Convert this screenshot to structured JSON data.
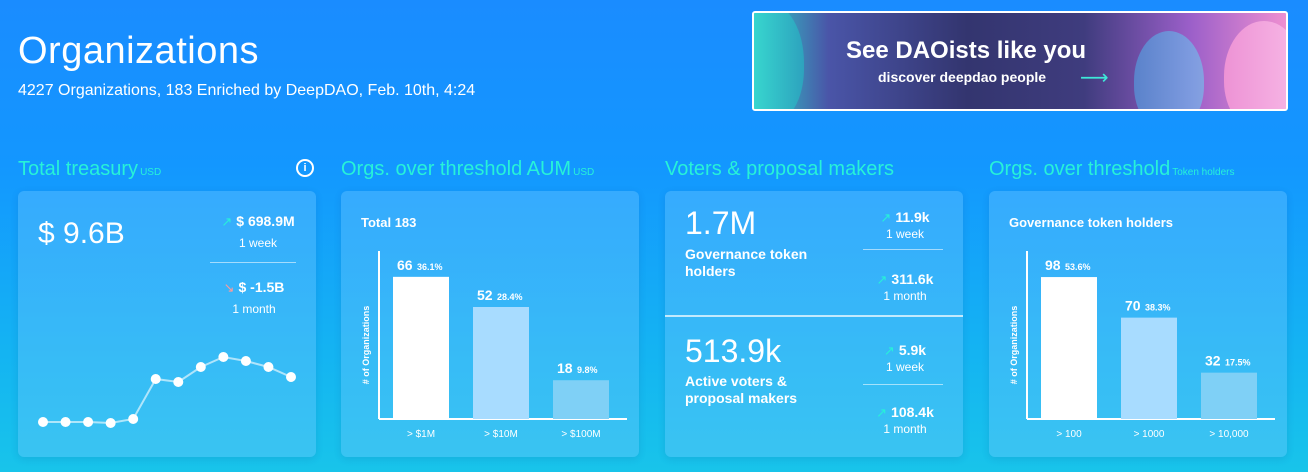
{
  "header": {
    "title": "Organizations",
    "subtitle": "4227 Organizations, 183 Enriched by DeepDAO, Feb. 10th, 4:24"
  },
  "banner": {
    "title": "See DAOists like you",
    "subtitle": "discover deepdao people",
    "arrow_icon": "arrow-right-icon"
  },
  "treasury": {
    "title": "Total treasury",
    "unit": "USD",
    "value": "$ 9.6B",
    "week_change": "$ 698.9M",
    "week_label": "1 week",
    "month_change": "$ -1.5B",
    "month_label": "1 month",
    "sparkline_values": [
      0.05,
      0.05,
      0.05,
      0.04,
      0.08,
      0.48,
      0.45,
      0.6,
      0.7,
      0.66,
      0.6,
      0.5
    ]
  },
  "aum": {
    "title": "Orgs. over threshold AUM",
    "unit": "USD",
    "total_label": "Total 183",
    "ylabel": "# of Organizations"
  },
  "voters": {
    "title": "Voters & proposal makers",
    "holders_value": "1.7M",
    "holders_label": "Governance token holders",
    "holders_week": "11.9k",
    "holders_week_label": "1 week",
    "holders_month": "311.6k",
    "holders_month_label": "1 month",
    "active_value": "513.9k",
    "active_label": "Active voters & proposal makers",
    "active_week": "5.9k",
    "active_week_label": "1 week",
    "active_month": "108.4k",
    "active_month_label": "1 month"
  },
  "holders": {
    "title": "Orgs. over threshold",
    "unit": "Token holders",
    "card_label": "Governance token holders",
    "ylabel": "# of Organizations"
  },
  "chart_data": [
    {
      "type": "bar",
      "categories": [
        "> $1M",
        "> $10M",
        "> $100M"
      ],
      "values": [
        66,
        52,
        18
      ],
      "percent_labels": [
        "36.1%",
        "28.4%",
        "9.8%"
      ],
      "ylabel": "# of Organizations",
      "ylim": [
        0,
        78
      ],
      "colors": [
        "#ffffff",
        "#a8dcff",
        "#7fd0f6"
      ]
    },
    {
      "type": "bar",
      "categories": [
        "> 100",
        "> 1000",
        "> 10,000"
      ],
      "values": [
        98,
        70,
        32
      ],
      "percent_labels": [
        "53.6%",
        "38.3%",
        "17.5%"
      ],
      "ylabel": "# of Organizations",
      "ylim": [
        0,
        116
      ],
      "colors": [
        "#ffffff",
        "#a8dcff",
        "#7fd0f6"
      ]
    }
  ]
}
